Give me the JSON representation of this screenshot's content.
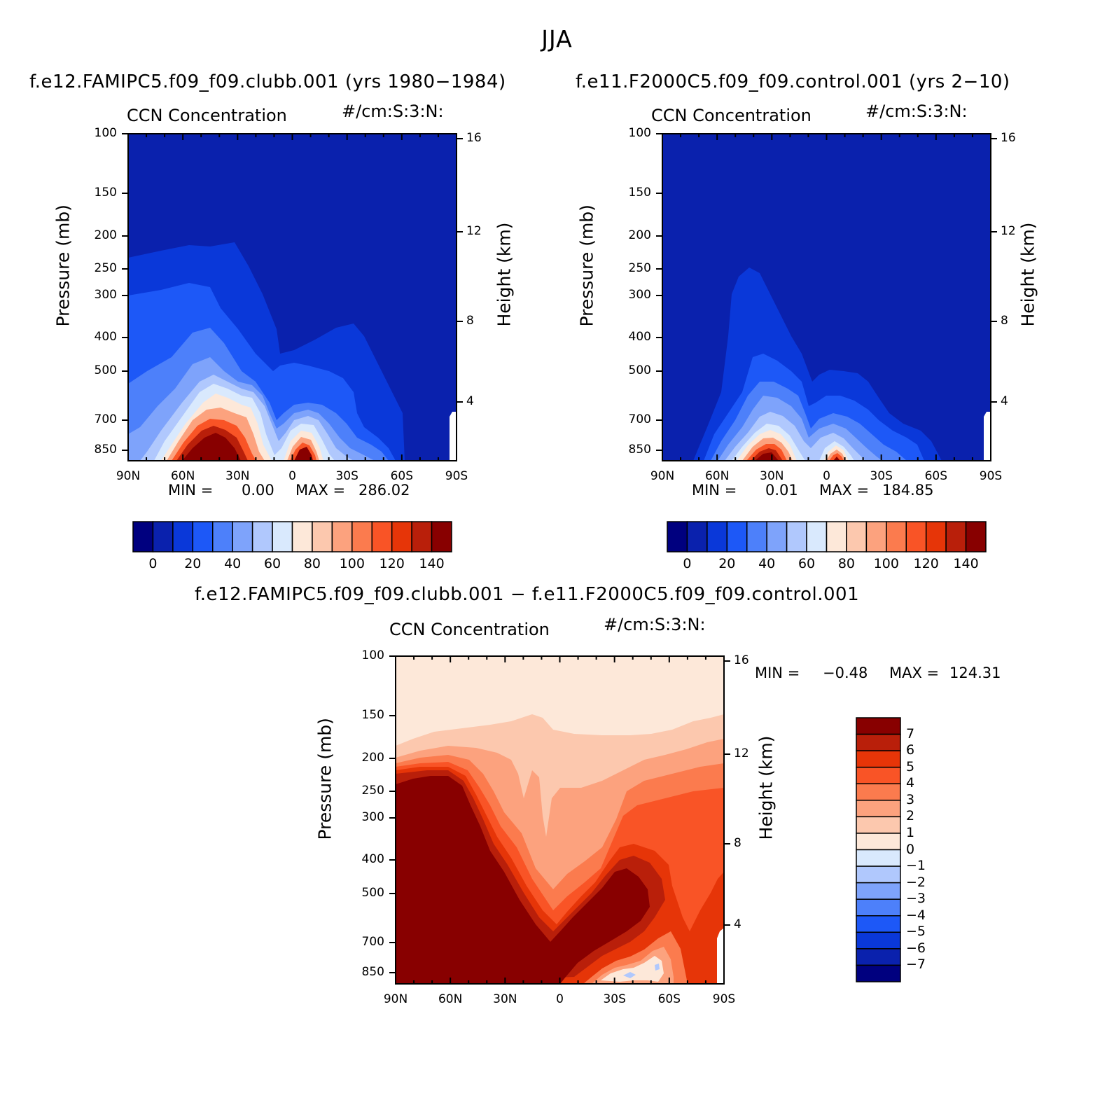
{
  "figure": {
    "title": "JJA",
    "variable_label": "CCN Concentration",
    "units_label": "#/cm:S:3:N:"
  },
  "colors": {
    "blues": [
      "#00007f",
      "#0a21ad",
      "#0a38d9",
      "#1d58f7",
      "#4d80fa",
      "#7ea3fb",
      "#b0c8fd",
      "#d9e9fd"
    ],
    "reds": [
      "#fde8d9",
      "#fcc8ae",
      "#fca27e",
      "#fb7b4e",
      "#f95426",
      "#e63508",
      "#b91f0a",
      "#880000"
    ],
    "frame": "#000000"
  },
  "chart_data": [
    {
      "type": "contour",
      "title": "f.e12.FAMIPC5.f09_f09.clubb.001 (yrs 1980−1984)",
      "subtitle_left": "CCN Concentration",
      "subtitle_right": "#/cm:S:3:N:",
      "xlabel": "",
      "ylabel": "Pressure (mb)",
      "ylabel_right": "Height (km)",
      "x_ticks": [
        "90N",
        "60N",
        "30N",
        "0",
        "30S",
        "60S",
        "90S"
      ],
      "y_ticks": [
        "100",
        "150",
        "200",
        "250",
        "300",
        "400",
        "500",
        "700",
        "850"
      ],
      "y_ticks_right": [
        "16",
        "12",
        "8",
        "4"
      ],
      "min_label": "MIN =",
      "min_value": "0.00",
      "max_label": "MAX =",
      "max_value": "286.02",
      "colorbar_levels": [
        "0",
        "20",
        "40",
        "60",
        "80",
        "100",
        "120",
        "140"
      ],
      "ylim": [
        100,
        1000
      ]
    },
    {
      "type": "contour",
      "title": "f.e11.F2000C5.f09_f09.control.001 (yrs 2−10)",
      "subtitle_left": "CCN Concentration",
      "subtitle_right": "#/cm:S:3:N:",
      "xlabel": "",
      "ylabel": "Pressure (mb)",
      "ylabel_right": "Height (km)",
      "x_ticks": [
        "90N",
        "60N",
        "30N",
        "0",
        "30S",
        "60S",
        "90S"
      ],
      "y_ticks": [
        "100",
        "150",
        "200",
        "250",
        "300",
        "400",
        "500",
        "700",
        "850"
      ],
      "y_ticks_right": [
        "16",
        "12",
        "8",
        "4"
      ],
      "min_label": "MIN =",
      "min_value": "0.01",
      "max_label": "MAX =",
      "max_value": "184.85",
      "colorbar_levels": [
        "0",
        "20",
        "40",
        "60",
        "80",
        "100",
        "120",
        "140"
      ],
      "ylim": [
        100,
        1000
      ]
    },
    {
      "type": "contour",
      "title": "f.e12.FAMIPC5.f09_f09.clubb.001 − f.e11.F2000C5.f09_f09.control.001",
      "subtitle_left": "CCN Concentration",
      "subtitle_right": "#/cm:S:3:N:",
      "xlabel": "",
      "ylabel": "Pressure (mb)",
      "ylabel_right": "Height (km)",
      "x_ticks": [
        "90N",
        "60N",
        "30N",
        "0",
        "30S",
        "60S",
        "90S"
      ],
      "y_ticks": [
        "100",
        "150",
        "200",
        "250",
        "300",
        "400",
        "500",
        "700",
        "850"
      ],
      "y_ticks_right": [
        "16",
        "12",
        "8",
        "4"
      ],
      "min_label": "MIN =",
      "min_value": "−0.48",
      "max_label": "MAX =",
      "max_value": "124.31",
      "colorbar_levels": [
        "7",
        "6",
        "5",
        "4",
        "3",
        "2",
        "1",
        "0",
        "−1",
        "−2",
        "−3",
        "−4",
        "−5",
        "−6",
        "−7"
      ],
      "ylim": [
        100,
        1000
      ]
    }
  ]
}
